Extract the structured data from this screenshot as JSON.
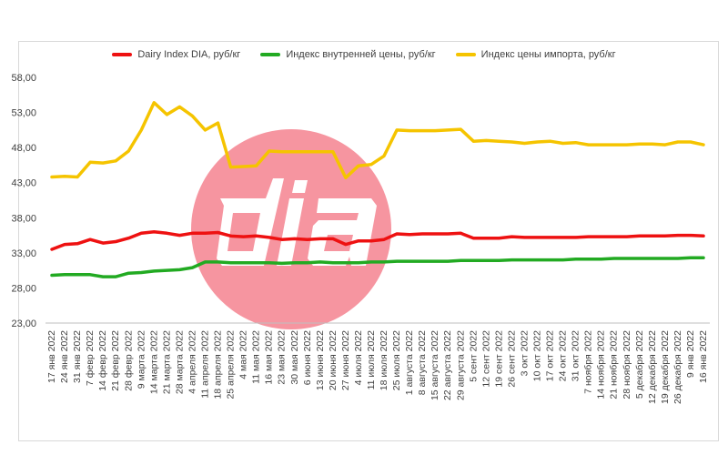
{
  "chart_data": {
    "type": "line",
    "title": "",
    "xlabel": "",
    "ylabel": "",
    "ylim": [
      23,
      58
    ],
    "y_ticks": [
      "23,00",
      "28,00",
      "33,00",
      "38,00",
      "43,00",
      "48,00",
      "53,00",
      "58,00"
    ],
    "grid": false,
    "legend_position": "top",
    "x_labels": [
      "17 янв 2022",
      "24 янв 2022",
      "31 янв 2022",
      "7 февр 2022",
      "14 февр 2022",
      "21 февр 2022",
      "28 февр 2022",
      "9 марта 2022",
      "14 марта 2022",
      "21 марта 2022",
      "28 марта 2022",
      "4 апреля 2022",
      "11 апреля 2022",
      "18 апреля 2022",
      "25 апреля 2022",
      "4 мая 2022",
      "11 мая 2022",
      "16 мая 2022",
      "23 мая 2022",
      "30 мая 2022",
      "6 июня 2022",
      "13 июня 2022",
      "20 июня 2022",
      "27 июня 2022",
      "4 июля 2022",
      "11 июля 2022",
      "18 июля 2022",
      "25 июля 2022",
      "1 августа 2022",
      "8 августа 2022",
      "15 августа 2022",
      "22 августа 2022",
      "29 августа 2022",
      "5 сент 2022",
      "12 сент 2022",
      "19 сент 2022",
      "26 сент 2022",
      "3 окт 2022",
      "10 окт 2022",
      "17 окт 2022",
      "24 окт 2022",
      "31 окт 2022",
      "7 ноября 2022",
      "14 ноября 2022",
      "21 ноября 2022",
      "28 ноября 2022",
      "5 декабря 2022",
      "12 декабря 2022",
      "19 декабря 2022",
      "26 декабря 2022",
      "9 янв 2022",
      "16 янв 2022"
    ],
    "series": [
      {
        "name": "Dairy Index DIA, руб/кг",
        "color": "#ee1111",
        "values": [
          33.5,
          34.2,
          34.3,
          34.9,
          34.4,
          34.6,
          35.1,
          35.8,
          36.0,
          35.8,
          35.5,
          35.8,
          35.8,
          35.9,
          35.4,
          35.3,
          35.4,
          35.2,
          34.9,
          35.0,
          34.9,
          35.0,
          35.0,
          34.2,
          34.7,
          34.7,
          34.9,
          35.7,
          35.6,
          35.7,
          35.7,
          35.7,
          35.8,
          35.1,
          35.1,
          35.1,
          35.3,
          35.2,
          35.2,
          35.2,
          35.2,
          35.2,
          35.3,
          35.3,
          35.3,
          35.3,
          35.4,
          35.4,
          35.4,
          35.5,
          35.5,
          35.4
        ]
      },
      {
        "name": "Индекс внутренней цены, руб/кг",
        "color": "#22aa22",
        "values": [
          29.8,
          29.9,
          29.9,
          29.9,
          29.6,
          29.6,
          30.1,
          30.2,
          30.4,
          30.5,
          30.6,
          30.9,
          31.7,
          31.7,
          31.6,
          31.6,
          31.6,
          31.6,
          31.5,
          31.6,
          31.6,
          31.7,
          31.6,
          31.6,
          31.6,
          31.7,
          31.7,
          31.8,
          31.8,
          31.8,
          31.8,
          31.8,
          31.9,
          31.9,
          31.9,
          31.9,
          32.0,
          32.0,
          32.0,
          32.0,
          32.0,
          32.1,
          32.1,
          32.1,
          32.2,
          32.2,
          32.2,
          32.2,
          32.2,
          32.2,
          32.3,
          32.3
        ]
      },
      {
        "name": "Индекс цены импорта, руб/кг",
        "color": "#f5c400",
        "values": [
          43.8,
          43.9,
          43.8,
          45.9,
          45.8,
          46.1,
          47.5,
          50.5,
          54.4,
          52.7,
          53.8,
          52.5,
          50.5,
          51.5,
          45.2,
          45.3,
          45.4,
          47.5,
          47.4,
          47.4,
          47.4,
          47.4,
          47.4,
          43.7,
          45.4,
          45.6,
          46.8,
          50.5,
          50.4,
          50.4,
          50.4,
          50.5,
          50.6,
          48.9,
          49.0,
          48.9,
          48.8,
          48.6,
          48.8,
          48.9,
          48.6,
          48.7,
          48.4,
          48.4,
          48.4,
          48.4,
          48.5,
          48.5,
          48.4,
          48.8,
          48.8,
          48.4
        ]
      }
    ]
  }
}
